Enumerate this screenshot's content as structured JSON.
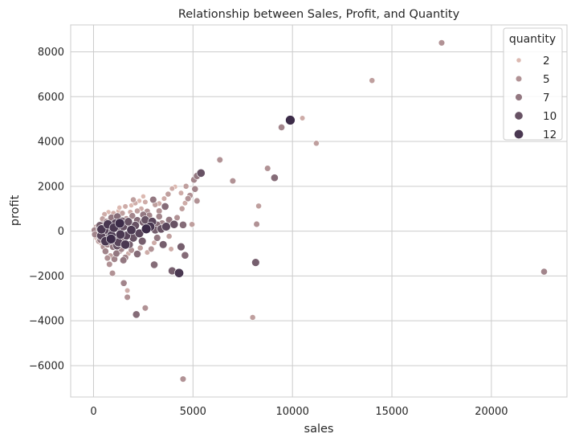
{
  "chart_data": {
    "type": "scatter",
    "title": "Relationship between Sales, Profit, and Quantity",
    "xlabel": "sales",
    "ylabel": "profit",
    "xlim": [
      -1150,
      23800
    ],
    "ylim": [
      -7400,
      9200
    ],
    "xticks": [
      0,
      5000,
      10000,
      15000,
      20000
    ],
    "yticks": [
      -6000,
      -4000,
      -2000,
      0,
      2000,
      4000,
      6000,
      8000
    ],
    "grid": true,
    "legend": {
      "title": "quantity",
      "placement": "top-right",
      "entries": [
        {
          "label": "2",
          "value": 2
        },
        {
          "label": "5",
          "value": 5
        },
        {
          "label": "7",
          "value": 7
        },
        {
          "label": "10",
          "value": 10
        },
        {
          "label": "12",
          "value": 12
        }
      ]
    },
    "colors": {
      "low": "#ebc6bb",
      "high": "#2d1e3e",
      "background": "#ffffff",
      "grid": "#cccccc",
      "point_edge": "#ffffff"
    },
    "series": [
      {
        "x_field": "sales",
        "y_field": "profit",
        "hue_field": "quantity",
        "points": [
          [
            17500,
            8400,
            5
          ],
          [
            14000,
            6720,
            4
          ],
          [
            10500,
            5040,
            3
          ],
          [
            9890,
            4950,
            13
          ],
          [
            9450,
            4630,
            6
          ],
          [
            11200,
            3920,
            4
          ],
          [
            6350,
            3180,
            5
          ],
          [
            8750,
            2800,
            5
          ],
          [
            9100,
            2380,
            8
          ],
          [
            7000,
            2240,
            5
          ],
          [
            5400,
            2590,
            10
          ],
          [
            5200,
            2460,
            7
          ],
          [
            5050,
            2290,
            6
          ],
          [
            4650,
            2000,
            4
          ],
          [
            4400,
            1700,
            3
          ],
          [
            4850,
            1590,
            5
          ],
          [
            5100,
            1880,
            6
          ],
          [
            5200,
            1350,
            5
          ],
          [
            8300,
            1120,
            4
          ],
          [
            8200,
            310,
            5
          ],
          [
            4950,
            300,
            4
          ],
          [
            4500,
            280,
            8
          ],
          [
            4050,
            300,
            10
          ],
          [
            3900,
            -800,
            3
          ],
          [
            4400,
            -700,
            9
          ],
          [
            4600,
            -1080,
            8
          ],
          [
            3950,
            -1770,
            9
          ],
          [
            4300,
            -1870,
            12
          ],
          [
            8150,
            -1400,
            9
          ],
          [
            8000,
            -3850,
            4
          ],
          [
            22650,
            -1810,
            6
          ],
          [
            4500,
            -6600,
            5
          ],
          [
            2600,
            -3430,
            5
          ],
          [
            2150,
            -3720,
            8
          ],
          [
            1700,
            -2950,
            5
          ],
          [
            1520,
            -2320,
            6
          ],
          [
            1700,
            -2650,
            3
          ],
          [
            950,
            -1880,
            5
          ],
          [
            800,
            -1480,
            5
          ],
          [
            1150,
            -1000,
            7
          ],
          [
            1600,
            -1180,
            6
          ],
          [
            2200,
            -1020,
            8
          ],
          [
            3050,
            -1500,
            8
          ],
          [
            2700,
            -950,
            3
          ],
          [
            3050,
            -520,
            3
          ],
          [
            3800,
            -230,
            4
          ],
          [
            3400,
            100,
            10
          ],
          [
            3650,
            200,
            11
          ],
          [
            3300,
            650,
            6
          ],
          [
            3000,
            1400,
            7
          ],
          [
            3100,
            1180,
            4
          ],
          [
            3300,
            1230,
            3
          ],
          [
            3550,
            1450,
            3
          ],
          [
            3750,
            1650,
            4
          ],
          [
            3950,
            1900,
            3
          ],
          [
            4100,
            1980,
            2
          ],
          [
            2800,
            700,
            6
          ],
          [
            2600,
            500,
            10
          ],
          [
            2500,
            400,
            9
          ],
          [
            2100,
            250,
            10
          ],
          [
            2200,
            480,
            8
          ],
          [
            2500,
            730,
            7
          ],
          [
            2700,
            880,
            5
          ],
          [
            2400,
            1000,
            3
          ],
          [
            2200,
            900,
            4
          ],
          [
            1950,
            680,
            6
          ],
          [
            1850,
            850,
            3
          ],
          [
            1650,
            550,
            5
          ],
          [
            1700,
            280,
            9
          ],
          [
            1500,
            200,
            10
          ],
          [
            1350,
            120,
            7
          ],
          [
            1200,
            650,
            8
          ],
          [
            1450,
            800,
            4
          ],
          [
            1250,
            900,
            2
          ],
          [
            1050,
            500,
            5
          ],
          [
            950,
            320,
            6
          ],
          [
            800,
            200,
            9
          ],
          [
            700,
            380,
            5
          ],
          [
            600,
            150,
            8
          ],
          [
            500,
            250,
            4
          ],
          [
            400,
            80,
            12
          ],
          [
            350,
            -50,
            6
          ],
          [
            300,
            100,
            7
          ],
          [
            250,
            -100,
            3
          ],
          [
            200,
            30,
            5
          ],
          [
            150,
            -60,
            4
          ],
          [
            120,
            20,
            3
          ],
          [
            80,
            -20,
            2
          ],
          [
            50,
            40,
            6
          ],
          [
            30,
            -10,
            4
          ],
          [
            10,
            10,
            2
          ],
          [
            100,
            -30,
            3
          ],
          [
            60,
            60,
            5
          ],
          [
            180,
            -150,
            5
          ],
          [
            220,
            150,
            4
          ],
          [
            280,
            -250,
            6
          ],
          [
            350,
            -380,
            7
          ],
          [
            420,
            300,
            6
          ],
          [
            500,
            -200,
            9
          ],
          [
            560,
            50,
            11
          ],
          [
            640,
            -300,
            8
          ],
          [
            700,
            -600,
            6
          ],
          [
            780,
            -450,
            9
          ],
          [
            820,
            120,
            10
          ],
          [
            900,
            -200,
            12
          ],
          [
            980,
            -700,
            7
          ],
          [
            1050,
            -350,
            10
          ],
          [
            1150,
            150,
            9
          ],
          [
            1250,
            -500,
            11
          ],
          [
            1350,
            -150,
            12
          ],
          [
            1400,
            -800,
            6
          ],
          [
            1550,
            -400,
            8
          ],
          [
            1650,
            -200,
            11
          ],
          [
            1800,
            -600,
            9
          ],
          [
            1900,
            50,
            12
          ],
          [
            2000,
            -300,
            10
          ],
          [
            2300,
            -100,
            11
          ],
          [
            2450,
            -450,
            9
          ],
          [
            2650,
            100,
            13
          ],
          [
            2850,
            200,
            12
          ],
          [
            3100,
            50,
            9
          ],
          [
            3200,
            280,
            8
          ],
          [
            2950,
            420,
            11
          ],
          [
            1750,
            420,
            10
          ],
          [
            1450,
            450,
            9
          ],
          [
            1100,
            350,
            11
          ],
          [
            900,
            600,
            7
          ],
          [
            650,
            420,
            6
          ],
          [
            450,
            550,
            4
          ],
          [
            550,
            750,
            3
          ],
          [
            750,
            850,
            2
          ],
          [
            1000,
            800,
            3
          ],
          [
            1300,
            1050,
            2
          ],
          [
            1600,
            1100,
            3
          ],
          [
            1900,
            1150,
            2
          ],
          [
            2100,
            1250,
            3
          ],
          [
            2300,
            1350,
            2
          ],
          [
            2000,
            1400,
            4
          ],
          [
            2600,
            1300,
            3
          ],
          [
            2500,
            1550,
            2
          ],
          [
            500,
            -700,
            5
          ],
          [
            400,
            -550,
            3
          ],
          [
            250,
            -450,
            4
          ],
          [
            150,
            -300,
            3
          ],
          [
            600,
            -900,
            6
          ],
          [
            850,
            -1100,
            4
          ],
          [
            700,
            -1200,
            5
          ],
          [
            1050,
            -1250,
            6
          ],
          [
            1300,
            -900,
            5
          ],
          [
            1500,
            -1300,
            7
          ],
          [
            1900,
            -850,
            5
          ],
          [
            1750,
            -1000,
            3
          ],
          [
            2350,
            -750,
            4
          ],
          [
            2900,
            -800,
            5
          ],
          [
            3200,
            -300,
            7
          ],
          [
            3500,
            -600,
            9
          ],
          [
            3300,
            900,
            5
          ],
          [
            3600,
            1100,
            8
          ],
          [
            3450,
            350,
            6
          ],
          [
            3800,
            500,
            7
          ],
          [
            4200,
            600,
            5
          ],
          [
            4450,
            1000,
            4
          ],
          [
            4600,
            1250,
            3
          ],
          [
            4750,
            1450,
            5
          ],
          [
            130,
            180,
            4
          ],
          [
            70,
            -150,
            6
          ],
          [
            320,
            250,
            9
          ],
          [
            380,
            -200,
            11
          ],
          [
            460,
            120,
            10
          ],
          [
            600,
            -450,
            12
          ],
          [
            720,
            300,
            12
          ],
          [
            880,
            -350,
            13
          ],
          [
            1020,
            150,
            12
          ],
          [
            1180,
            -650,
            10
          ],
          [
            1320,
            350,
            13
          ],
          [
            1600,
            -600,
            12
          ]
        ]
      }
    ]
  }
}
